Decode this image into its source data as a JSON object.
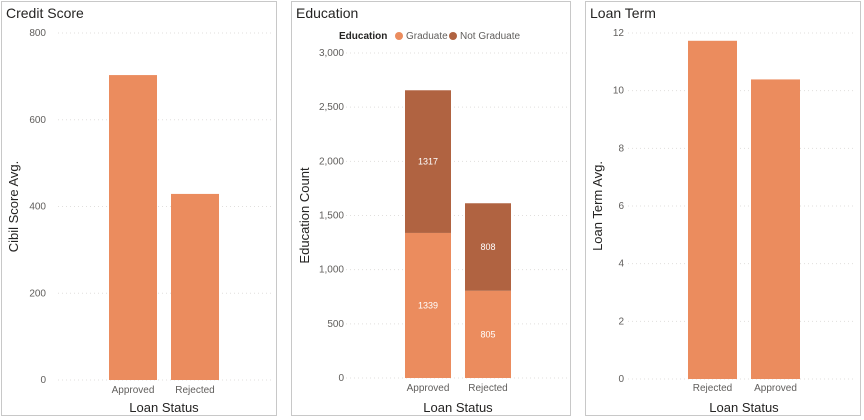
{
  "colors": {
    "primary": "#EB8C5E",
    "secondary": "#B06341",
    "grid": "#e1dfdd"
  },
  "chart_data": [
    {
      "type": "bar",
      "title": "Credit Score",
      "xlabel": "Loan Status",
      "ylabel": "Cibil Score Avg.",
      "categories": [
        "Approved",
        "Rejected"
      ],
      "values": [
        703,
        429
      ],
      "ylim": [
        0,
        800
      ],
      "yticks": [
        0,
        200,
        400,
        600,
        800
      ],
      "ytick_labels": [
        "0",
        "200",
        "400",
        "600",
        "800"
      ],
      "grid": true
    },
    {
      "type": "bar",
      "stacked": true,
      "title": "Education",
      "xlabel": "Loan Status",
      "ylabel": "Education Count",
      "legend_title": "Education",
      "legend_position": "top-left",
      "categories": [
        "Approved",
        "Rejected"
      ],
      "series": [
        {
          "name": "Graduate",
          "values": [
            1339,
            805
          ],
          "data_labels": [
            "1339",
            "805"
          ]
        },
        {
          "name": "Not Graduate",
          "values": [
            1317,
            808
          ],
          "data_labels": [
            "1317",
            "808"
          ]
        }
      ],
      "ylim": [
        0,
        3000
      ],
      "yticks": [
        0,
        500,
        1000,
        1500,
        2000,
        2500,
        3000
      ],
      "ytick_labels": [
        "0",
        "500",
        "1,000",
        "1,500",
        "2,000",
        "2,500",
        "3,000"
      ],
      "grid": true
    },
    {
      "type": "bar",
      "title": "Loan Term",
      "xlabel": "Loan Status",
      "ylabel": "Loan Term Avg.",
      "categories": [
        "Rejected",
        "Approved"
      ],
      "values": [
        11.73,
        10.39
      ],
      "ylim": [
        0,
        12
      ],
      "yticks": [
        0,
        2,
        4,
        6,
        8,
        10,
        12
      ],
      "ytick_labels": [
        "0",
        "2",
        "4",
        "6",
        "8",
        "10",
        "12"
      ],
      "grid": true
    }
  ]
}
